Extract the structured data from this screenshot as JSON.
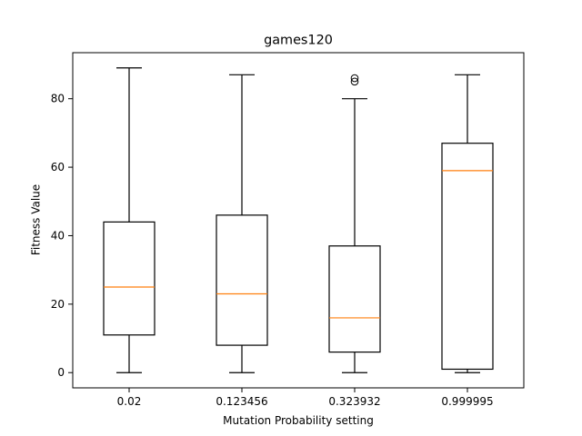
{
  "chart_data": {
    "type": "box",
    "title": "games120",
    "xlabel": "Mutation Probability setting",
    "ylabel": "Fitness Value",
    "categories": [
      "0.02",
      "0.123456",
      "0.323932",
      "0.999995"
    ],
    "boxes": [
      {
        "category": "0.02",
        "whisker_low": 0,
        "q1": 11,
        "median": 25,
        "q3": 44,
        "whisker_high": 89,
        "outliers": []
      },
      {
        "category": "0.123456",
        "whisker_low": 0,
        "q1": 8,
        "median": 23,
        "q3": 46,
        "whisker_high": 87,
        "outliers": []
      },
      {
        "category": "0.323932",
        "whisker_low": 0,
        "q1": 6,
        "median": 16,
        "q3": 37,
        "whisker_high": 80,
        "outliers": [
          85,
          86
        ]
      },
      {
        "category": "0.999995",
        "whisker_low": 0,
        "q1": 1,
        "median": 59,
        "q3": 67,
        "whisker_high": 87,
        "outliers": []
      }
    ],
    "yticks": [
      0,
      20,
      40,
      60,
      80
    ],
    "ytick_labels": [
      "0",
      "20",
      "40",
      "60",
      "80"
    ],
    "ylim": [
      -4.45,
      93.45
    ],
    "grid": false,
    "colors": {
      "box": "#000000",
      "median": "#ff7f0e",
      "whisker": "#000000",
      "outlier": "#000000"
    }
  }
}
